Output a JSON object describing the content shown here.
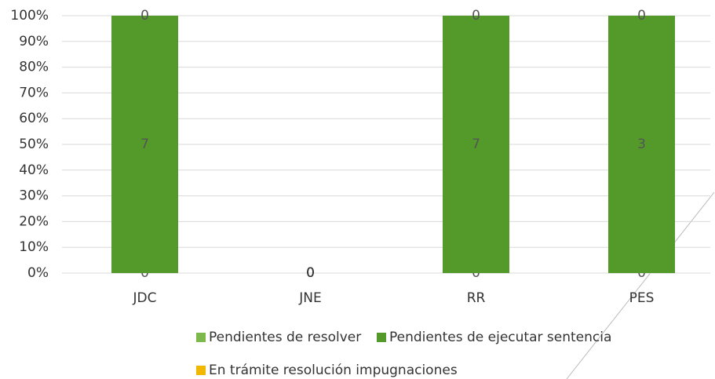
{
  "chart_data": {
    "type": "bar",
    "stacking": "percent",
    "categories": [
      "JDC",
      "JNE",
      "RR",
      "PES"
    ],
    "series": [
      {
        "name": "Pendientes de resolver",
        "color": "#7cb84a",
        "values": [
          0,
          0,
          0,
          0
        ]
      },
      {
        "name": "Pendientes de ejecutar sentencia",
        "color": "#549a2a",
        "values": [
          7,
          0,
          7,
          3
        ]
      },
      {
        "name": "En trámite resolución impugnaciones",
        "color": "#f2b705",
        "values": [
          0,
          0,
          0,
          0
        ]
      }
    ],
    "ylim": [
      0,
      100
    ],
    "yticks": [
      {
        "value": 0,
        "label": "0%"
      },
      {
        "value": 10,
        "label": "10%"
      },
      {
        "value": 20,
        "label": "20%"
      },
      {
        "value": 30,
        "label": "30%"
      },
      {
        "value": 40,
        "label": "40%"
      },
      {
        "value": 50,
        "label": "50%"
      },
      {
        "value": 60,
        "label": "60%"
      },
      {
        "value": 70,
        "label": "70%"
      },
      {
        "value": 80,
        "label": "80%"
      },
      {
        "value": 90,
        "label": "90%"
      },
      {
        "value": 100,
        "label": "100%"
      }
    ],
    "grid": true,
    "legend": "bottom"
  }
}
